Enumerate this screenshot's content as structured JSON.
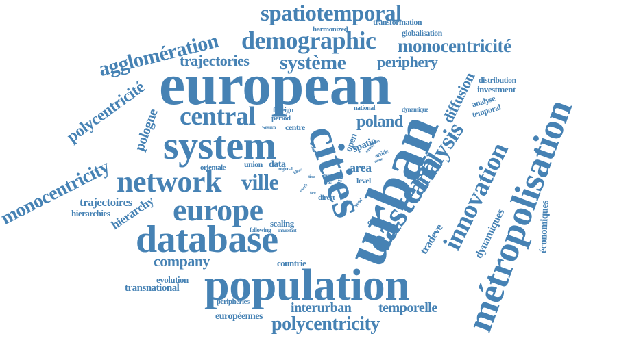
{
  "color": "#4682b4",
  "words": {
    "european": "european",
    "population": "population",
    "metropolisation": "métropolisation",
    "cities": "cities",
    "urban": "urban",
    "system": "system",
    "database": "database",
    "eastern": "eastern",
    "network": "network",
    "innovation": "innovation",
    "europe": "europe",
    "analysis": "analysis",
    "demographic": "demographic",
    "central": "central",
    "spatiotemporal": "spatiotemporal",
    "agglomeration": "agglomération",
    "monocentricite": "monocentricité",
    "polycentricity": "polycentricity",
    "monocentricity": "monocentricity",
    "systeme": "système",
    "trajectories": "trajectories",
    "periphery": "periphery",
    "polycentricite": "polycentricité",
    "pologne": "pologne",
    "ville": "ville",
    "company": "company",
    "interurban": "interurban",
    "temporelle": "temporelle",
    "diffusion": "diffusion",
    "poland": "poland",
    "trajectoires": "trajectoires",
    "hierarchy": "hierarchy",
    "transnational": "transnational",
    "tradeve": "tradeve",
    "dynamiques": "dynamiques",
    "economiques": "économiques",
    "europeennes": "européennes",
    "hierarchies": "hierarchies",
    "area": "area",
    "data": "data",
    "scaling": "scaling",
    "evolution": "evolution",
    "countrie": "countrie",
    "peripheries": "peripheries",
    "union": "union",
    "orientale": "orientale",
    "open": "open",
    "spatio": "spatio",
    "core": "core",
    "level": "level",
    "direct": "direct",
    "depuis": "depuis",
    "investment": "investment",
    "distribution": "distribution",
    "analyse": "analyse",
    "temporal": "temporal",
    "transformation": "transformation",
    "globalisation": "globalisation",
    "harmonized": "harmonized",
    "national": "national",
    "dynamique": "dynamique",
    "foreign": "foreign",
    "period": "period",
    "centre": "centre",
    "western": "western",
    "article": "article",
    "following": "following",
    "inhabitant": "inhabitant",
    "regional": "regional",
    "firm": "firm",
    "proc": "proc",
    "centrale": "centrale",
    "spatial": "spatial",
    "related": "related",
    "century": "century",
    "relation": "relation",
    "name": "name",
    "urbain": "urbain",
    "follow": "follow",
    "time": "time",
    "march": "march",
    "face": "face",
    "size": "size"
  }
}
